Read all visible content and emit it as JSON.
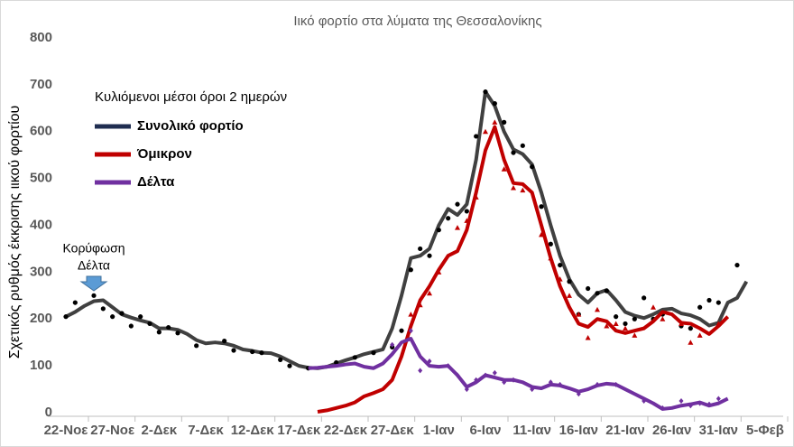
{
  "chart_data": {
    "type": "line",
    "title": "Ιικό φορτίο στα λύματα της Θεσσαλονίκης",
    "ylabel": "Σχετικός ρυθμός έκκρισης ιικού φορτίου",
    "legend_title": "Κυλιόμενοι μέσοι όροι 2 ημερών",
    "legend": "upper-left",
    "annotation_lines": [
      "Κορύφωση",
      "Δέλτα"
    ],
    "annotation_x": 3,
    "xlim": [
      0,
      75
    ],
    "xticks": [
      {
        "value": 0,
        "label": "22-Νοε"
      },
      {
        "value": 5,
        "label": "27-Νοε"
      },
      {
        "value": 10,
        "label": "2-Δεκ"
      },
      {
        "value": 15,
        "label": "7-Δεκ"
      },
      {
        "value": 20,
        "label": "12-Δεκ"
      },
      {
        "value": 25,
        "label": "17-Δεκ"
      },
      {
        "value": 30,
        "label": "22-Δεκ"
      },
      {
        "value": 35,
        "label": "27-Δεκ"
      },
      {
        "value": 40,
        "label": "1-Ιαν"
      },
      {
        "value": 45,
        "label": "6-Ιαν"
      },
      {
        "value": 50,
        "label": "11-Ιαν"
      },
      {
        "value": 55,
        "label": "16-Ιαν"
      },
      {
        "value": 60,
        "label": "21-Ιαν"
      },
      {
        "value": 65,
        "label": "26-Ιαν"
      },
      {
        "value": 70,
        "label": "31-Ιαν"
      },
      {
        "value": 75,
        "label": "5-Φεβ"
      }
    ],
    "ylim": [
      0,
      800
    ],
    "yticks": [
      0,
      100,
      200,
      300,
      400,
      500,
      600,
      700,
      800
    ],
    "grid": false,
    "series": [
      {
        "name": "Συνολικό φορτίο",
        "color": "#404040",
        "legend_color": "#1f2d50",
        "marker": "circle",
        "marker_color": "#000000",
        "x": [
          0,
          1,
          2,
          3,
          4,
          5,
          6,
          7,
          8,
          9,
          10,
          11,
          12,
          13,
          14,
          15,
          16,
          17,
          18,
          19,
          20,
          21,
          22,
          23,
          24,
          25,
          26,
          27,
          28,
          29,
          30,
          31,
          32,
          33,
          34,
          35,
          36,
          37,
          38,
          39,
          40,
          41,
          42,
          43,
          44,
          45,
          46,
          47,
          48,
          49,
          50,
          51,
          52,
          53,
          54,
          55,
          56,
          57,
          58,
          59,
          60,
          61,
          62,
          63,
          64,
          65,
          66,
          67,
          68,
          69,
          70,
          71,
          72,
          73
        ],
        "values": [
          205,
          215,
          228,
          238,
          240,
          225,
          210,
          203,
          197,
          192,
          180,
          180,
          177,
          168,
          155,
          148,
          150,
          148,
          143,
          135,
          132,
          128,
          127,
          120,
          110,
          100,
          96,
          95,
          98,
          105,
          112,
          118,
          125,
          130,
          135,
          180,
          250,
          330,
          335,
          350,
          400,
          435,
          422,
          445,
          540,
          685,
          655,
          600,
          562,
          552,
          530,
          470,
          400,
          335,
          285,
          252,
          235,
          255,
          262,
          240,
          215,
          207,
          202,
          210,
          220,
          222,
          212,
          208,
          200,
          186,
          192,
          235,
          245,
          280
        ],
        "scatter_x": [
          0,
          1,
          3,
          4,
          5,
          6,
          7,
          8,
          9,
          10,
          11,
          12,
          14,
          17,
          18,
          20,
          21,
          23,
          24,
          26,
          29,
          31,
          33,
          35,
          36,
          37,
          38,
          39,
          40,
          41,
          42,
          43,
          44,
          45,
          46,
          47,
          48,
          49,
          50,
          51,
          52,
          53,
          54,
          55,
          56,
          57,
          58,
          59,
          60,
          61,
          62,
          63,
          64,
          66,
          67,
          68,
          69,
          70,
          72
        ],
        "scatter_values": [
          205,
          235,
          250,
          222,
          205,
          212,
          185,
          205,
          190,
          172,
          182,
          170,
          143,
          153,
          133,
          130,
          128,
          113,
          100,
          95,
          107,
          118,
          128,
          140,
          175,
          305,
          350,
          335,
          390,
          415,
          445,
          430,
          590,
          685,
          660,
          620,
          555,
          570,
          525,
          440,
          360,
          315,
          280,
          210,
          265,
          255,
          260,
          205,
          190,
          200,
          245,
          200,
          210,
          185,
          180,
          225,
          240,
          235,
          315
        ]
      },
      {
        "name": "Όμικρον",
        "color": "#c00000",
        "legend_color": "#c00000",
        "marker": "triangle",
        "marker_color": "#c00000",
        "x": [
          27,
          28,
          29,
          30,
          31,
          32,
          33,
          34,
          35,
          36,
          37,
          38,
          39,
          40,
          41,
          42,
          43,
          44,
          45,
          46,
          47,
          48,
          49,
          50,
          51,
          52,
          53,
          54,
          55,
          56,
          57,
          58,
          59,
          60,
          61,
          62,
          63,
          64,
          65,
          66,
          67,
          68,
          69,
          70,
          71
        ],
        "values": [
          2,
          5,
          10,
          15,
          22,
          35,
          42,
          50,
          70,
          120,
          185,
          240,
          270,
          305,
          335,
          345,
          390,
          470,
          560,
          610,
          540,
          490,
          488,
          470,
          400,
          330,
          270,
          225,
          190,
          183,
          200,
          195,
          175,
          170,
          175,
          180,
          195,
          215,
          210,
          192,
          190,
          180,
          168,
          185,
          205
        ],
        "scatter_x": [
          37,
          38,
          39,
          40,
          42,
          43,
          44,
          45,
          46,
          47,
          48,
          49,
          51,
          52,
          53,
          54,
          55,
          56,
          57,
          58,
          59,
          60,
          61,
          63,
          64,
          66,
          67,
          68,
          70
        ],
        "scatter_values": [
          210,
          230,
          255,
          300,
          395,
          410,
          460,
          600,
          620,
          520,
          480,
          475,
          380,
          330,
          285,
          250,
          210,
          160,
          220,
          185,
          190,
          180,
          165,
          225,
          200,
          190,
          150,
          165,
          190
        ]
      },
      {
        "name": "Δέλτα",
        "color": "#7030a0",
        "legend_color": "#7030a0",
        "marker": "diamond",
        "marker_color": "#7030a0",
        "x": [
          26,
          27,
          28,
          29,
          30,
          31,
          32,
          33,
          34,
          35,
          36,
          37,
          38,
          39,
          40,
          41,
          42,
          43,
          44,
          45,
          46,
          47,
          48,
          49,
          50,
          51,
          52,
          53,
          54,
          55,
          56,
          57,
          58,
          59,
          60,
          61,
          62,
          63,
          64,
          65,
          66,
          67,
          68,
          69,
          70,
          71
        ],
        "values": [
          95,
          96,
          98,
          100,
          103,
          105,
          98,
          95,
          105,
          125,
          150,
          158,
          120,
          100,
          98,
          100,
          80,
          55,
          65,
          80,
          75,
          70,
          70,
          65,
          55,
          52,
          60,
          58,
          52,
          45,
          50,
          58,
          62,
          60,
          50,
          40,
          30,
          20,
          8,
          10,
          15,
          18,
          22,
          15,
          20,
          30
        ],
        "scatter_x": [
          35,
          37,
          38,
          39,
          41,
          42,
          43,
          44,
          45,
          46,
          47,
          48,
          50,
          52,
          53,
          55,
          57,
          59,
          62,
          64,
          66,
          67,
          68,
          69,
          70
        ],
        "scatter_values": [
          145,
          175,
          90,
          110,
          100,
          80,
          50,
          70,
          80,
          85,
          65,
          70,
          50,
          65,
          60,
          40,
          60,
          60,
          25,
          10,
          25,
          15,
          20,
          18,
          30
        ]
      }
    ]
  }
}
